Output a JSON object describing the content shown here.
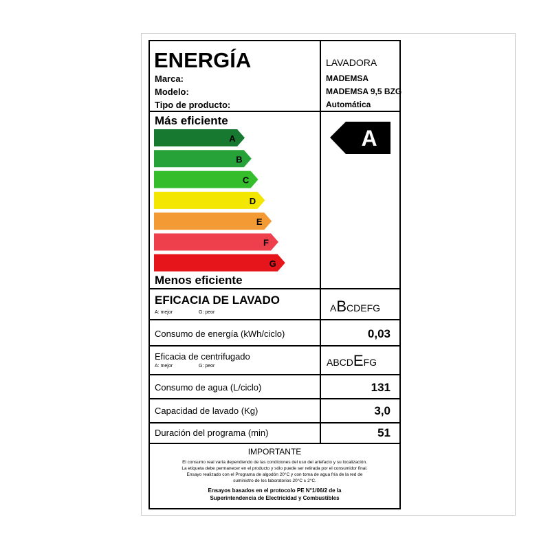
{
  "header": {
    "title": "ENERGÍA",
    "fields": [
      "Marca:",
      "Modelo:",
      "Tipo de producto:"
    ],
    "values": [
      "LAVADORA",
      "MADEMSA",
      "MADEMSA 9,5 BZG",
      "Automática"
    ]
  },
  "scale": {
    "top": "Más eficiente",
    "bottom": "Menos eficiente",
    "classes": [
      {
        "label": "A",
        "color": "#17792f"
      },
      {
        "label": "B",
        "color": "#27a239"
      },
      {
        "label": "C",
        "color": "#35bd2b"
      },
      {
        "label": "D",
        "color": "#f3e600"
      },
      {
        "label": "E",
        "color": "#f49a34"
      },
      {
        "label": "F",
        "color": "#ee3f4c"
      },
      {
        "label": "G",
        "color": "#e6151c"
      }
    ],
    "rating": "A"
  },
  "washing": {
    "label": "EFICACIA DE LAVADO",
    "best": "A: mejor",
    "worst": "G: peor",
    "before": "A",
    "selected": "B",
    "after": "CDEFG"
  },
  "energy": {
    "label": "Consumo de energía (kWh/ciclo)",
    "value": "0,03"
  },
  "spin": {
    "label": "Eficacia de centrifugado",
    "best": "A: mejor",
    "worst": "G: peor",
    "before": "ABCD",
    "selected": "E",
    "after": "FG"
  },
  "water": {
    "label": "Consumo de agua (L/ciclo)",
    "value": "131"
  },
  "capacity": {
    "label": "Capacidad de lavado (Kg)",
    "value": "3,0"
  },
  "duration": {
    "label": "Duración del programa (min)",
    "value": "51"
  },
  "important": {
    "title": "IMPORTANTE",
    "lines": [
      "El consumo real varía dependiendo de las condiciones del uso del artefacto y su localización.",
      "La etiqueta debe permanecer en el producto y sólo puede ser retirada por el consumidor final.",
      "Ensayo realizado con el Programa de algodón 20°C y con toma de agua fría de la red de",
      "suministro de los laboratorios 20°C ± 2°C."
    ],
    "footer": [
      "Ensayos basados en el protocolo PE N°1/06/2 de la",
      "Superintendencia de Electricidad y Combustibles"
    ]
  }
}
